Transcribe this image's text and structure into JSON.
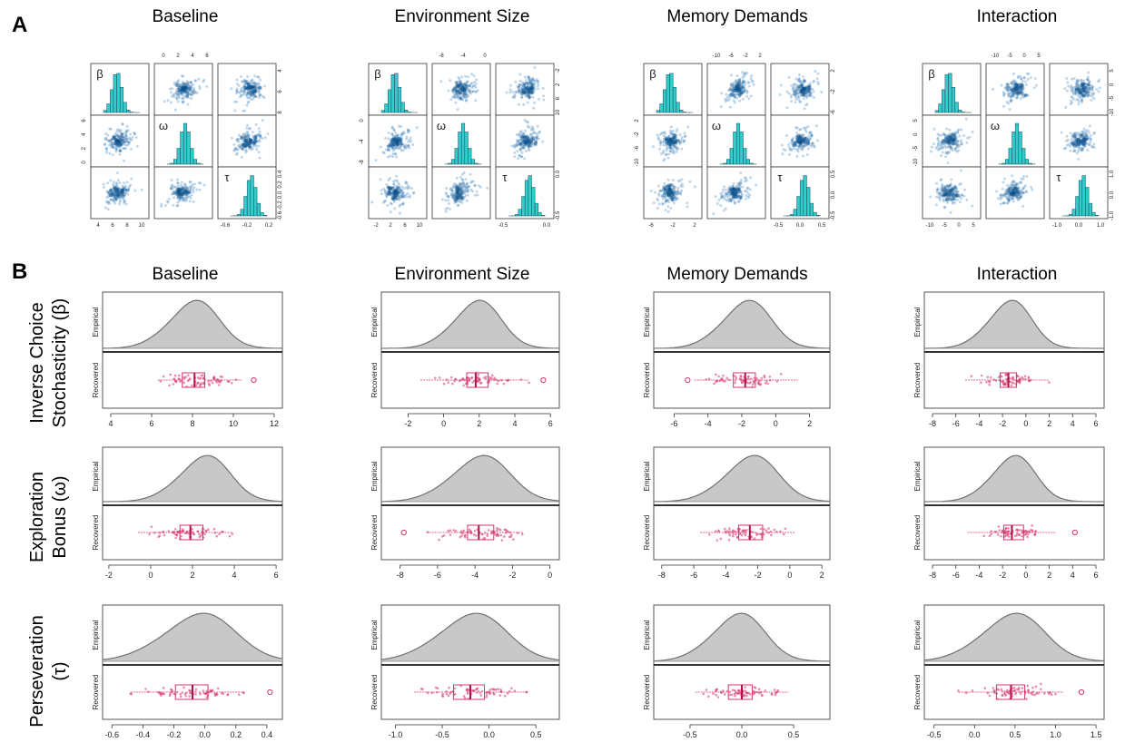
{
  "figure": {
    "panel_a_letter": "A",
    "panel_b_letter": "B",
    "conditions": [
      "Baseline",
      "Environment Size",
      "Memory Demands",
      "Interaction"
    ],
    "panel_b_titles": [
      "Baseline",
      "Environment Size",
      "Memory Demands",
      "Interaction"
    ],
    "parameter_labels": [
      {
        "line1": "Inverse Choice",
        "line2": "Stochasticity (β)"
      },
      {
        "line1": "Exploration",
        "line2": "Bonus (ω)"
      },
      {
        "line1": "Perseveration",
        "line2": "(τ)"
      }
    ],
    "empirical_label": "Empirical",
    "recovered_label": "Recovered",
    "colors": {
      "scatter": "#1f6fb4",
      "histogram_fill": "#33cccc",
      "density_fill": "#c8c8c8",
      "density_line": "#707070",
      "recovered_points": "#d6336c"
    }
  },
  "chart_data": [
    {
      "type": "scatter",
      "title": "Baseline",
      "panel": "A",
      "diagonal_labels": [
        "β",
        "ω",
        "τ"
      ],
      "diagonal_type": "histogram",
      "top_axis_ticks": [
        "0",
        "2",
        "4",
        "6"
      ],
      "right_axis_ticks_row1": [
        "4",
        "6",
        "8"
      ],
      "right_axis_ticks_row3": [
        "0.4",
        "0.2",
        "0.0",
        "-0.2",
        "-0.6"
      ],
      "left_axis_ticks_row2": [
        "0",
        "2",
        "4",
        "6"
      ],
      "bottom_axis_ticks_col1": [
        "4",
        "6",
        "8",
        "10"
      ],
      "bottom_axis_ticks_col3": [
        "-0.6",
        "-0.2",
        "0.2"
      ],
      "means": {
        "beta": 8.0,
        "omega": 3.0,
        "tau": -0.15
      }
    },
    {
      "type": "scatter",
      "title": "Environment Size",
      "panel": "A",
      "diagonal_labels": [
        "β",
        "ω",
        "τ"
      ],
      "diagonal_type": "histogram",
      "top_axis_ticks": [
        "-8",
        "-4",
        "0"
      ],
      "right_axis_ticks_row1": [
        "-2",
        "2",
        "6",
        "10"
      ],
      "right_axis_ticks_row3": [
        "0.0",
        "-0.5"
      ],
      "left_axis_ticks_row2": [
        "-8",
        "-4",
        "0"
      ],
      "bottom_axis_ticks_col1": [
        "-2",
        "2",
        "6",
        "10"
      ],
      "bottom_axis_ticks_col3": [
        "-0.5",
        "0.0"
      ],
      "means": {
        "beta": 2.0,
        "omega": -3.8,
        "tau": -0.15
      }
    },
    {
      "type": "scatter",
      "title": "Memory Demands",
      "panel": "A",
      "diagonal_labels": [
        "β",
        "ω",
        "τ"
      ],
      "diagonal_type": "histogram",
      "top_axis_ticks": [
        "-10",
        "-6",
        "-2",
        "2"
      ],
      "right_axis_ticks_row1": [
        "2",
        "-2",
        "-6"
      ],
      "right_axis_ticks_row3": [
        "0.5",
        "0.0",
        "-0.5"
      ],
      "left_axis_ticks_row2": [
        "-10",
        "-6",
        "-2",
        "2"
      ],
      "bottom_axis_ticks_col1": [
        "-6",
        "-2",
        "2"
      ],
      "bottom_axis_ticks_col3": [
        "-0.5",
        "0.0",
        "0.5"
      ],
      "means": {
        "beta": -1.5,
        "omega": -2.5,
        "tau": 0.0
      }
    },
    {
      "type": "scatter",
      "title": "Interaction",
      "panel": "A",
      "diagonal_labels": [
        "β",
        "ω",
        "τ"
      ],
      "diagonal_type": "histogram",
      "top_axis_ticks": [
        "-10",
        "-5",
        "0",
        "5"
      ],
      "right_axis_ticks_row1": [
        "5",
        "0",
        "-5",
        "-10"
      ],
      "right_axis_ticks_row3": [
        "1.0",
        "0.0",
        "-1.0"
      ],
      "left_axis_ticks_row2": [
        "-10",
        "-5",
        "0",
        "5"
      ],
      "bottom_axis_ticks_col1": [
        "-10",
        "-5",
        "0",
        "5"
      ],
      "bottom_axis_ticks_col3": [
        "-1.0",
        "0.0",
        "1.0"
      ],
      "means": {
        "beta": -1.5,
        "omega": -1.2,
        "tau": 0.45
      }
    },
    {
      "type": "area",
      "panel": "B",
      "condition": "Baseline",
      "parameter": "β",
      "xticks": [
        "4",
        "6",
        "8",
        "10",
        "12"
      ],
      "xlim": [
        3.6,
        12.4
      ],
      "empirical_peak": 8.0,
      "recovered_box": {
        "q1": 7.5,
        "median": 8.1,
        "q3": 8.6,
        "whisker_low": 6.3,
        "whisker_high": 10.4,
        "outlier": 11.0
      }
    },
    {
      "type": "area",
      "panel": "B",
      "condition": "Environment Size",
      "parameter": "β",
      "xticks": [
        "-2",
        "0",
        "2",
        "4",
        "6"
      ],
      "xlim": [
        -3.5,
        6.5
      ],
      "empirical_peak": 1.8,
      "recovered_box": {
        "q1": 1.3,
        "median": 1.8,
        "q3": 2.5,
        "whisker_low": -1.3,
        "whisker_high": 4.8,
        "outlier": 5.6
      }
    },
    {
      "type": "area",
      "panel": "B",
      "condition": "Memory Demands",
      "parameter": "β",
      "xticks": [
        "-6",
        "-4",
        "-2",
        "0",
        "2"
      ],
      "xlim": [
        -7.2,
        3.2
      ],
      "empirical_peak": -1.8,
      "recovered_box": {
        "q1": -2.5,
        "median": -1.8,
        "q3": -1.2,
        "whisker_low": -4.8,
        "whisker_high": 1.3,
        "outlier": -5.2
      }
    },
    {
      "type": "area",
      "panel": "B",
      "condition": "Interaction",
      "parameter": "β",
      "xticks": [
        "-8",
        "-6",
        "-4",
        "-2",
        "0",
        "2",
        "4",
        "6"
      ],
      "xlim": [
        -8.7,
        6.7
      ],
      "empirical_peak": -1.5,
      "recovered_box": {
        "q1": -2.2,
        "median": -1.5,
        "q3": -0.8,
        "whisker_low": -5.2,
        "whisker_high": 2.0,
        "outlier": null
      }
    },
    {
      "type": "area",
      "panel": "B",
      "condition": "Baseline",
      "parameter": "ω",
      "xticks": [
        "-2",
        "0",
        "2",
        "4",
        "6"
      ],
      "xlim": [
        -2.3,
        6.3
      ],
      "empirical_peak": 2.5,
      "recovered_box": {
        "q1": 1.4,
        "median": 1.9,
        "q3": 2.5,
        "whisker_low": -0.6,
        "whisker_high": 3.9,
        "outlier": null
      }
    },
    {
      "type": "area",
      "panel": "B",
      "condition": "Environment Size",
      "parameter": "ω",
      "xticks": [
        "-8",
        "-6",
        "-4",
        "-2",
        "0"
      ],
      "xlim": [
        -9.0,
        0.5
      ],
      "empirical_peak": -3.8,
      "recovered_box": {
        "q1": -4.4,
        "median": -3.8,
        "q3": -3.0,
        "whisker_low": -6.6,
        "whisker_high": -1.4,
        "outlier": -7.8
      }
    },
    {
      "type": "area",
      "panel": "B",
      "condition": "Memory Demands",
      "parameter": "ω",
      "xticks": [
        "-8",
        "-6",
        "-4",
        "-2",
        "0",
        "2"
      ],
      "xlim": [
        -8.5,
        2.5
      ],
      "empirical_peak": -2.5,
      "recovered_box": {
        "q1": -3.2,
        "median": -2.5,
        "q3": -1.7,
        "whisker_low": -5.6,
        "whisker_high": 0.3,
        "outlier": null
      }
    },
    {
      "type": "area",
      "panel": "B",
      "condition": "Interaction",
      "parameter": "ω",
      "xticks": [
        "-8",
        "-6",
        "-4",
        "-2",
        "0",
        "2",
        "4",
        "6"
      ],
      "xlim": [
        -8.7,
        6.7
      ],
      "empirical_peak": -1.2,
      "recovered_box": {
        "q1": -1.9,
        "median": -1.2,
        "q3": -0.2,
        "whisker_low": -5.0,
        "whisker_high": 2.6,
        "outlier": 4.2
      }
    },
    {
      "type": "area",
      "panel": "B",
      "condition": "Baseline",
      "parameter": "τ",
      "xticks": [
        "-0.6",
        "-0.4",
        "-0.2",
        "0.0",
        "0.2",
        "0.4"
      ],
      "xlim": [
        -0.66,
        0.5
      ],
      "empirical_peak": -0.05,
      "recovered_box": {
        "q1": -0.19,
        "median": -0.08,
        "q3": 0.02,
        "whisker_low": -0.48,
        "whisker_high": 0.25,
        "outlier": 0.42
      }
    },
    {
      "type": "area",
      "panel": "B",
      "condition": "Environment Size",
      "parameter": "τ",
      "xticks": [
        "-1.0",
        "-0.5",
        "0.0",
        "0.5"
      ],
      "xlim": [
        -1.15,
        0.75
      ],
      "empirical_peak": -0.2,
      "recovered_box": {
        "q1": -0.38,
        "median": -0.2,
        "q3": -0.05,
        "whisker_low": -0.8,
        "whisker_high": 0.4,
        "outlier": null
      }
    },
    {
      "type": "area",
      "panel": "B",
      "condition": "Memory Demands",
      "parameter": "τ",
      "xticks": [
        "-0.5",
        "0.0",
        "0.5"
      ],
      "xlim": [
        -0.85,
        0.85
      ],
      "empirical_peak": -0.05,
      "recovered_box": {
        "q1": -0.13,
        "median": 0.0,
        "q3": 0.1,
        "whisker_low": -0.45,
        "whisker_high": 0.45,
        "outlier": null
      }
    },
    {
      "type": "area",
      "panel": "B",
      "condition": "Interaction",
      "parameter": "τ",
      "xticks": [
        "-0.5",
        "0.0",
        "0.5",
        "1.0",
        "1.5"
      ],
      "xlim": [
        -0.62,
        1.6
      ],
      "empirical_peak": 0.45,
      "recovered_box": {
        "q1": 0.27,
        "median": 0.45,
        "q3": 0.62,
        "whisker_low": -0.2,
        "whisker_high": 1.1,
        "outlier": 1.32
      }
    }
  ]
}
